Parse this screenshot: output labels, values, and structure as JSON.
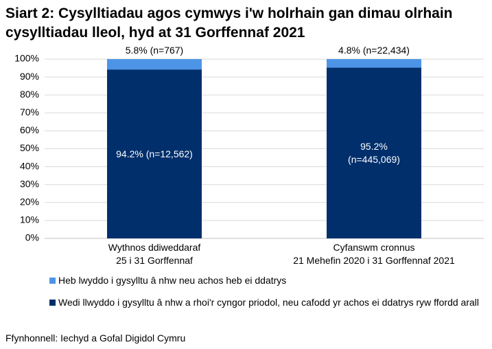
{
  "chart_data": {
    "type": "stacked_bar",
    "title": "Siart 2: Cysylltiadau agos cymwys i'w holrhain gan dimau olrhain cysylltiadau lleol, hyd at 31 Gorffennaf 2021",
    "categories": [
      "Wythnos ddiweddaraf\n25 i 31 Gorffennaf",
      "Cyfanswm cronnus\n21 Mehefin 2020 i 31 Gorffennaf 2021"
    ],
    "series": [
      {
        "name": "Heb lwyddo i gysylltu â nhw neu achos heb ei ddatrys",
        "color": "#4d94e6",
        "values": [
          5.8,
          4.8
        ],
        "value_labels": [
          "5.8% (n=767)",
          "4.8% (n=22,434)"
        ]
      },
      {
        "name": "Wedi llwyddo i gysylltu â nhw a rhoi'r cyngor priodol, neu cafodd yr achos ei ddatrys ryw ffordd arall",
        "color": "#002f6c",
        "values": [
          94.2,
          95.2
        ],
        "value_labels": [
          "94.2% (n=12,562)",
          "95.2%\n(n=445,069)"
        ]
      }
    ],
    "ylim": [
      0,
      100
    ],
    "yticks": [
      {
        "value": 0,
        "label": "0%"
      },
      {
        "value": 10,
        "label": "10%"
      },
      {
        "value": 20,
        "label": "20%"
      },
      {
        "value": 30,
        "label": "30%"
      },
      {
        "value": 40,
        "label": "40%"
      },
      {
        "value": 50,
        "label": "50%"
      },
      {
        "value": 60,
        "label": "60%"
      },
      {
        "value": 70,
        "label": "70%"
      },
      {
        "value": 80,
        "label": "80%"
      },
      {
        "value": 90,
        "label": "90%"
      },
      {
        "value": 100,
        "label": "100%"
      }
    ],
    "grid": true,
    "source": "Ffynhonnell: Iechyd a Gofal Digidol Cymru"
  }
}
